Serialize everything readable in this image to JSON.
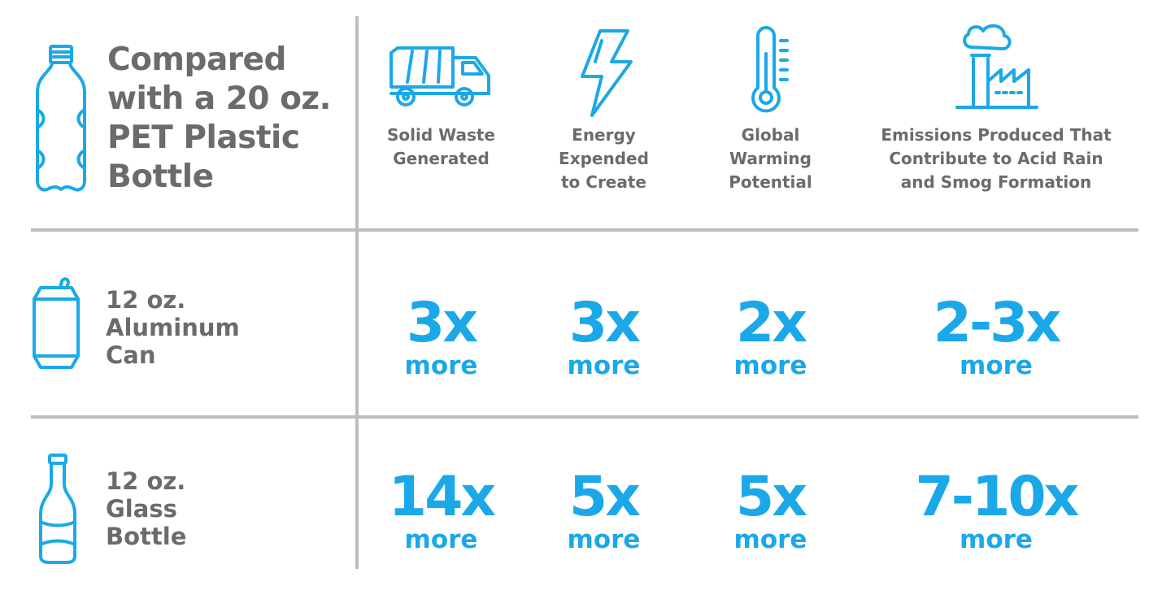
{
  "header": {
    "title_lines": [
      "Compared",
      "with a 20 oz.",
      "PET Plastic",
      "Bottle"
    ],
    "columns": [
      {
        "lines": [
          "Solid Waste",
          "Generated"
        ],
        "icon": "garbage-truck-icon"
      },
      {
        "lines": [
          "Energy",
          "Expended",
          "to Create"
        ],
        "icon": "lightning-icon"
      },
      {
        "lines": [
          "Global",
          "Warming",
          "Potential"
        ],
        "icon": "thermometer-icon"
      },
      {
        "lines": [
          "Emissions Produced That",
          "Contribute to Acid Rain",
          "and Smog Formation"
        ],
        "icon": "factory-icon"
      }
    ]
  },
  "rows": [
    {
      "label_lines": [
        "12 oz.",
        "Aluminum",
        "Can"
      ],
      "icon": "aluminum-can-icon",
      "values": [
        "3x",
        "3x",
        "2x",
        "2-3x"
      ],
      "unit": "more"
    },
    {
      "label_lines": [
        "12 oz.",
        "Glass",
        "Bottle"
      ],
      "icon": "glass-bottle-icon",
      "values": [
        "14x",
        "5x",
        "5x",
        "7-10x"
      ],
      "unit": "more"
    }
  ],
  "colors": {
    "accent": "#1ba8e8",
    "text": "#6b6b6d",
    "divider": "#bdbdbd"
  }
}
